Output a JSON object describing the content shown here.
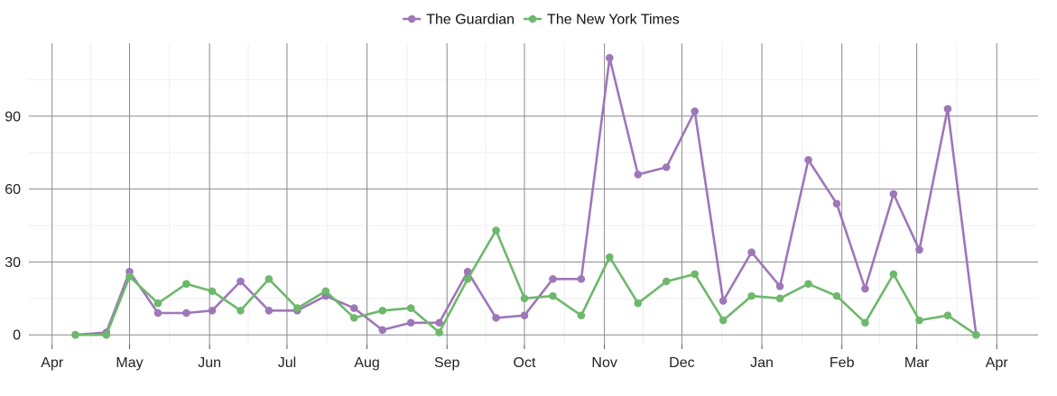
{
  "chart_data": {
    "type": "line",
    "x": [
      "2015-04-10",
      "2015-04-22",
      "2015-05-01",
      "2015-05-12",
      "2015-05-23",
      "2015-06-02",
      "2015-06-13",
      "2015-06-24",
      "2015-07-05",
      "2015-07-16",
      "2015-07-27",
      "2015-08-07",
      "2015-08-18",
      "2015-08-29",
      "2015-09-09",
      "2015-09-20",
      "2015-10-01",
      "2015-10-12",
      "2015-10-23",
      "2015-11-03",
      "2015-11-14",
      "2015-11-25",
      "2015-12-06",
      "2015-12-17",
      "2015-12-28",
      "2016-01-08",
      "2016-01-19",
      "2016-01-30",
      "2016-02-10",
      "2016-02-21",
      "2016-03-02",
      "2016-03-13",
      "2016-03-24"
    ],
    "series": [
      {
        "name": "The Guardian",
        "color": "#9E77B8",
        "values": [
          0,
          1,
          26,
          9,
          9,
          10,
          22,
          10,
          10,
          16,
          11,
          2,
          5,
          5,
          26,
          7,
          8,
          23,
          23,
          114,
          66,
          69,
          92,
          14,
          34,
          20,
          72,
          54,
          19,
          58,
          35,
          93,
          0
        ]
      },
      {
        "name": "The New York Times",
        "color": "#6DB86B",
        "values": [
          0,
          0,
          24,
          13,
          21,
          18,
          10,
          23,
          11,
          18,
          7,
          10,
          11,
          1,
          23,
          43,
          15,
          16,
          8,
          32,
          13,
          22,
          25,
          6,
          16,
          15,
          21,
          16,
          5,
          25,
          6,
          8,
          0
        ]
      }
    ],
    "x_ticks": [
      {
        "date": "2015-04-01",
        "label": "Apr"
      },
      {
        "date": "2015-05-01",
        "label": "May"
      },
      {
        "date": "2015-06-01",
        "label": "Jun"
      },
      {
        "date": "2015-07-01",
        "label": "Jul"
      },
      {
        "date": "2015-08-01",
        "label": "Aug"
      },
      {
        "date": "2015-09-01",
        "label": "Sep"
      },
      {
        "date": "2015-10-01",
        "label": "Oct"
      },
      {
        "date": "2015-11-01",
        "label": "Nov"
      },
      {
        "date": "2015-12-01",
        "label": "Dec"
      },
      {
        "date": "2016-01-01",
        "label": "Jan"
      },
      {
        "date": "2016-02-01",
        "label": "Feb"
      },
      {
        "date": "2016-03-01",
        "label": "Mar"
      },
      {
        "date": "2016-04-01",
        "label": "Apr"
      }
    ],
    "y_ticks": [
      0,
      30,
      60,
      90
    ],
    "ylim": [
      -4,
      120
    ],
    "xlim": [
      "2015-03-23",
      "2016-04-17"
    ],
    "legend_position": "top",
    "grid": true
  }
}
